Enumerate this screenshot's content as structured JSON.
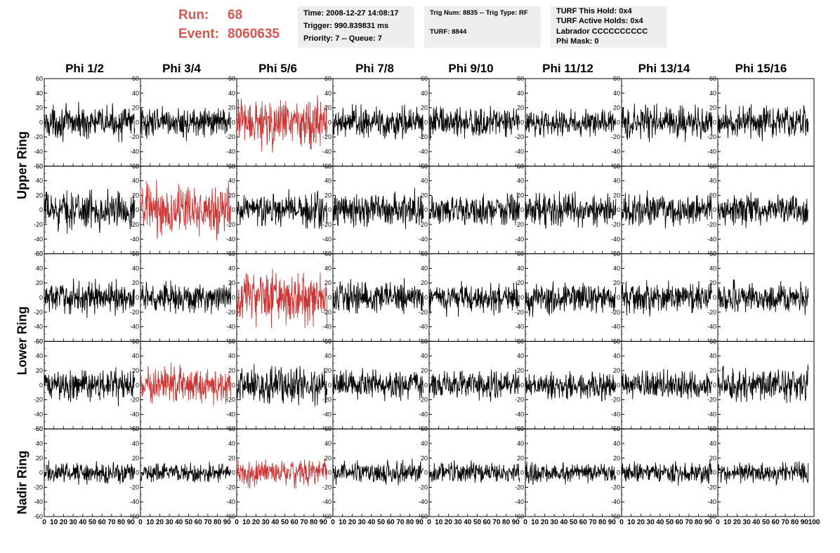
{
  "header": {
    "run_label": "Run:",
    "run_value": "68",
    "event_label": "Event:",
    "event_value": "8060635",
    "accent_color": "#d9534f"
  },
  "info_boxes": [
    {
      "lines": [
        "Time: 2008-12-27 14:08:17",
        "Trigger: 990.839831 ms",
        "Priority: 7 -- Queue: 7"
      ]
    },
    {
      "lines": [
        "Trig Num: 8835 -- Trig Type: RF",
        "TURF: 8844"
      ]
    },
    {
      "lines": [
        "TURF This Hold: 0x4",
        "TURF Active Holds: 0x4",
        "Labrador CCCCCCCCCC",
        "Phi Mask: 0"
      ]
    }
  ],
  "columns": [
    "Phi 1/2",
    "Phi 3/4",
    "Phi 5/6",
    "Phi 7/8",
    "Phi 9/10",
    "Phi 11/12",
    "Phi 13/14",
    "Phi 15/16"
  ],
  "row_labels": [
    "Upper Ring",
    "Lower Ring",
    "Nadir Ring"
  ],
  "chart_data": {
    "type": "line",
    "grid": false,
    "rows": 5,
    "cols": 8,
    "xlim": [
      0,
      100
    ],
    "ylim": [
      -60,
      60
    ],
    "y_ticks": [
      -60,
      -40,
      -20,
      0,
      20,
      40,
      60
    ],
    "x_ticks": [
      0,
      10,
      20,
      30,
      40,
      50,
      60,
      70,
      80,
      90,
      100
    ],
    "x_tick_labels_compact": "0 10 20 30 40 50 60 70 80 90 100",
    "trace_color": "#000000",
    "highlight_color": "#cc3333",
    "highlighted_panels": [
      [
        0,
        2
      ],
      [
        1,
        1
      ],
      [
        2,
        2
      ],
      [
        3,
        1
      ],
      [
        4,
        2
      ]
    ],
    "panel_amplitudes": [
      [
        15,
        14,
        24,
        16,
        15,
        12,
        16,
        15
      ],
      [
        18,
        24,
        17,
        16,
        15,
        15,
        15,
        14
      ],
      [
        15,
        14,
        24,
        15,
        14,
        15,
        15,
        14
      ],
      [
        15,
        18,
        17,
        14,
        14,
        13,
        13,
        16
      ],
      [
        10,
        9,
        13,
        11,
        10,
        10,
        10,
        10
      ]
    ]
  }
}
